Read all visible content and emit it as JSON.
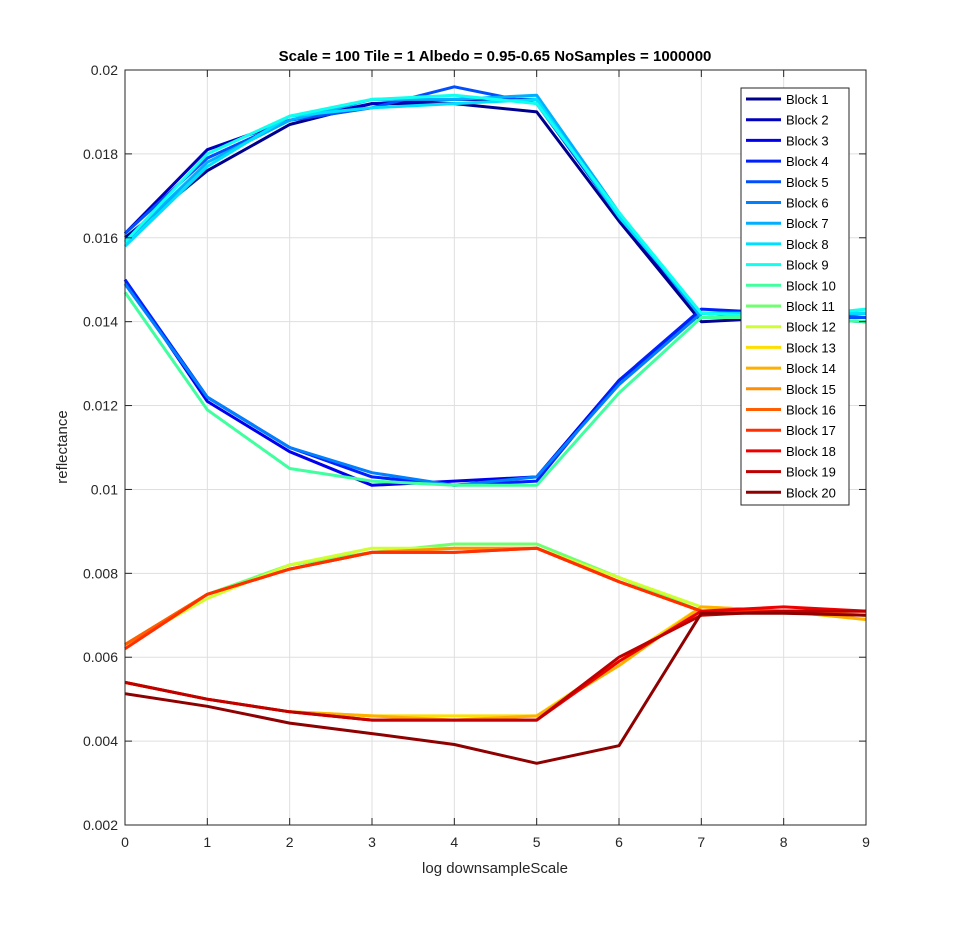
{
  "chart_data": {
    "type": "line",
    "title": "Scale = 100 Tile = 1 Albedo = 0.95-0.65 NoSamples = 1000000",
    "xlabel": "log downsampleScale",
    "ylabel": "reflectance",
    "xlim": [
      0,
      9
    ],
    "ylim": [
      0.002,
      0.02
    ],
    "xticks": [
      0,
      1,
      2,
      3,
      4,
      5,
      6,
      7,
      8,
      9
    ],
    "xtick_labels": [
      "0",
      "1",
      "2",
      "3",
      "4",
      "5",
      "6",
      "7",
      "8",
      "9"
    ],
    "yticks": [
      0.002,
      0.004,
      0.006,
      0.008,
      0.01,
      0.012,
      0.014,
      0.016,
      0.018,
      0.02
    ],
    "ytick_labels": [
      "0.002",
      "0.004",
      "0.006",
      "0.008",
      "0.01",
      "0.012",
      "0.014",
      "0.016",
      "0.018",
      "0.02"
    ],
    "grid": true,
    "legend_position": "top-right",
    "x": [
      0,
      1,
      2,
      3,
      4,
      5,
      6,
      7,
      8,
      9
    ],
    "series": [
      {
        "name": "Block 1",
        "color": "#00008F",
        "values": [
          0.016,
          0.0176,
          0.0187,
          0.0192,
          0.0192,
          0.019,
          0.0164,
          0.014,
          0.0141,
          0.0141
        ]
      },
      {
        "name": "Block 2",
        "color": "#0000BF",
        "values": [
          0.0161,
          0.0181,
          0.0188,
          0.0192,
          0.0193,
          0.0193,
          0.0165,
          0.0141,
          0.0141,
          0.014
        ]
      },
      {
        "name": "Block 3",
        "color": "#0000EF",
        "values": [
          0.015,
          0.0121,
          0.0109,
          0.0101,
          0.0102,
          0.0103,
          0.0126,
          0.0142,
          0.0141,
          0.0141
        ]
      },
      {
        "name": "Block 4",
        "color": "#001FFF",
        "values": [
          0.015,
          0.0122,
          0.011,
          0.0103,
          0.0101,
          0.0102,
          0.0126,
          0.0143,
          0.0142,
          0.0141
        ]
      },
      {
        "name": "Block 5",
        "color": "#004FFF",
        "values": [
          0.0161,
          0.0179,
          0.0188,
          0.0191,
          0.0196,
          0.0192,
          0.0165,
          0.0142,
          0.0141,
          0.0141
        ]
      },
      {
        "name": "Block 6",
        "color": "#007FFF",
        "values": [
          0.0149,
          0.0122,
          0.011,
          0.0104,
          0.0101,
          0.0103,
          0.0125,
          0.0142,
          0.0142,
          0.0142
        ]
      },
      {
        "name": "Block 7",
        "color": "#00AFFF",
        "values": [
          0.0159,
          0.0178,
          0.0188,
          0.0193,
          0.0193,
          0.0194,
          0.0166,
          0.0141,
          0.0141,
          0.0142
        ]
      },
      {
        "name": "Block 8",
        "color": "#00DFFF",
        "values": [
          0.0158,
          0.0177,
          0.0189,
          0.0191,
          0.0192,
          0.0193,
          0.0165,
          0.0142,
          0.0142,
          0.0142
        ]
      },
      {
        "name": "Block 9",
        "color": "#10FFEF",
        "values": [
          0.0159,
          0.018,
          0.0189,
          0.0193,
          0.0194,
          0.0192,
          0.0166,
          0.0142,
          0.0141,
          0.0143
        ]
      },
      {
        "name": "Block 10",
        "color": "#40FF9F",
        "values": [
          0.0147,
          0.0119,
          0.0105,
          0.0102,
          0.0101,
          0.0101,
          0.0123,
          0.0141,
          0.0141,
          0.014
        ]
      },
      {
        "name": "Block 11",
        "color": "#70FF70",
        "values": [
          0.0063,
          0.0075,
          0.0082,
          0.0085,
          0.0087,
          0.0087,
          0.0079,
          0.0071,
          0.0071,
          0.007
        ]
      },
      {
        "name": "Block 12",
        "color": "#CFFF30",
        "values": [
          0.0063,
          0.0074,
          0.0082,
          0.0086,
          0.0086,
          0.0086,
          0.0079,
          0.0072,
          0.0071,
          0.007
        ]
      },
      {
        "name": "Block 13",
        "color": "#FFDF00",
        "values": [
          0.0054,
          0.005,
          0.0047,
          0.0046,
          0.0046,
          0.0046,
          0.0059,
          0.0072,
          0.0071,
          0.0069
        ]
      },
      {
        "name": "Block 14",
        "color": "#FFAF00",
        "values": [
          0.0054,
          0.005,
          0.0047,
          0.0046,
          0.0045,
          0.0046,
          0.0058,
          0.0072,
          0.0071,
          0.0069
        ]
      },
      {
        "name": "Block 15",
        "color": "#FF8F00",
        "values": [
          0.0063,
          0.0075,
          0.0081,
          0.0085,
          0.0086,
          0.0086,
          0.0078,
          0.0071,
          0.0071,
          0.007
        ]
      },
      {
        "name": "Block 16",
        "color": "#FF5F00",
        "values": [
          0.0063,
          0.0075,
          0.0081,
          0.0085,
          0.0085,
          0.0086,
          0.0078,
          0.0071,
          0.0071,
          0.0071
        ]
      },
      {
        "name": "Block 17",
        "color": "#FF2F00",
        "values": [
          0.0062,
          0.0075,
          0.0081,
          0.0085,
          0.0085,
          0.0086,
          0.0078,
          0.0071,
          0.0071,
          0.0071
        ]
      },
      {
        "name": "Block 18",
        "color": "#EF0000",
        "values": [
          0.0054,
          0.005,
          0.0047,
          0.0045,
          0.0045,
          0.0045,
          0.0059,
          0.0071,
          0.0072,
          0.0071
        ]
      },
      {
        "name": "Block 19",
        "color": "#BF0000",
        "values": [
          0.0054,
          0.005,
          0.0047,
          0.0045,
          0.0045,
          0.0045,
          0.006,
          0.007,
          0.0071,
          0.0071
        ]
      },
      {
        "name": "Block 20",
        "color": "#8F0000",
        "values": [
          0.00513,
          0.00483,
          0.00443,
          0.00418,
          0.00392,
          0.00347,
          0.00389,
          0.00705,
          0.00705,
          0.007
        ]
      }
    ]
  }
}
